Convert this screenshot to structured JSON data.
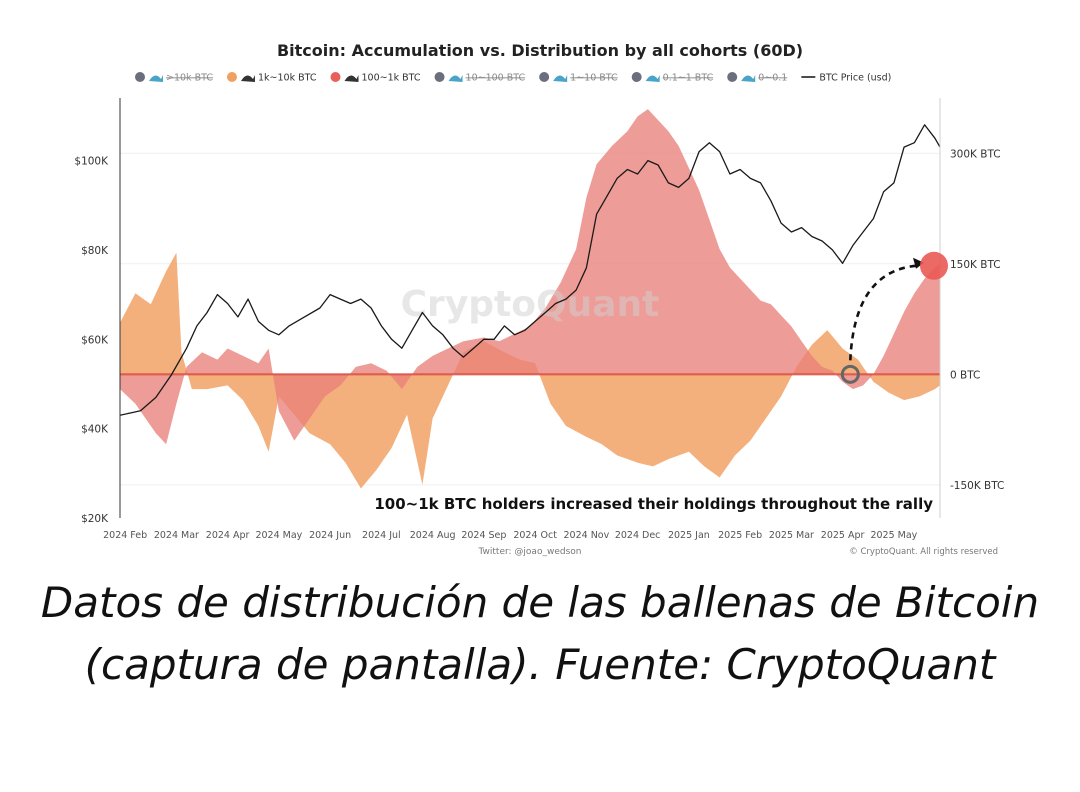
{
  "chart_data": {
    "type": "area",
    "title": "Bitcoin: Accumulation vs. Distribution by all cohorts (60D)",
    "legend_placement": "top",
    "legend": [
      {
        "label": ">10k BTC",
        "color": "#6b6f7d",
        "hidden": true,
        "icon": "humpback-icon"
      },
      {
        "label": "1k~10k BTC",
        "color": "#f0a060",
        "hidden": false,
        "icon": "whale-icon"
      },
      {
        "label": "100~1k BTC",
        "color": "#e8605a",
        "hidden": false,
        "icon": "shark-icon"
      },
      {
        "label": "10~100 BTC",
        "color": "#6b6f7d",
        "hidden": true,
        "icon": "dolphin-icon"
      },
      {
        "label": "1~10 BTC",
        "color": "#6b6f7d",
        "hidden": true,
        "icon": "crab-icon"
      },
      {
        "label": "0.1~1 BTC",
        "color": "#6b6f7d",
        "hidden": true,
        "icon": "octopus-icon"
      },
      {
        "label": "0~0.1",
        "color": "#6b6f7d",
        "hidden": true,
        "icon": "shrimp-icon"
      },
      {
        "label": "BTC Price (usd)",
        "color": "#111111",
        "hidden": false,
        "icon": "line-icon"
      }
    ],
    "x_ticks": [
      "2024 Feb",
      "2024 Mar",
      "2024 Apr",
      "2024 May",
      "2024 Jun",
      "2024 Jul",
      "2024 Aug",
      "2024 Sep",
      "2024 Oct",
      "2024 Nov",
      "2024 Dec",
      "2025 Jan",
      "2025 Feb",
      "2025 Mar",
      "2025 Apr",
      "2025 May"
    ],
    "x_tick_months": [
      0,
      1,
      2,
      3,
      4,
      5,
      6,
      7,
      8,
      9,
      10,
      11,
      12,
      13,
      14,
      15
    ],
    "x_range": [
      -0.1,
      15.9
    ],
    "y_left": {
      "ticks": [
        "$20K",
        "$40K",
        "$60K",
        "$80K",
        "$100K"
      ],
      "values": [
        20000,
        40000,
        60000,
        80000,
        100000
      ],
      "range": [
        20000,
        114000
      ]
    },
    "y_right": {
      "ticks": [
        "300K BTC",
        "150K BTC",
        "0 BTC",
        "-150K BTC"
      ],
      "values": [
        300000,
        150000,
        0,
        -150000
      ],
      "range": [
        -195000,
        375000
      ]
    },
    "series": [
      {
        "name": "1k~10k BTC",
        "color": "#f3a56a",
        "axis": "right",
        "x": [
          -0.1,
          0.2,
          0.5,
          0.8,
          1.0,
          1.1,
          1.3,
          1.6,
          2.0,
          2.3,
          2.6,
          2.8,
          3.0,
          3.3,
          3.6,
          4.0,
          4.3,
          4.6,
          4.9,
          5.2,
          5.5,
          5.8,
          6.0,
          6.3,
          6.6,
          7.0,
          7.4,
          7.7,
          8.0,
          8.3,
          8.6,
          9.0,
          9.3,
          9.6,
          10.0,
          10.3,
          10.6,
          11.0,
          11.3,
          11.6,
          11.9,
          12.2,
          12.5,
          12.8,
          13.1,
          13.4,
          13.7,
          14.0,
          14.3,
          14.6,
          14.9,
          15.2,
          15.5,
          15.8,
          15.9
        ],
        "values": [
          70000,
          110000,
          95000,
          140000,
          165000,
          30000,
          -20000,
          -20000,
          -15000,
          -35000,
          -70000,
          -105000,
          -30000,
          -55000,
          -80000,
          -95000,
          -120000,
          -155000,
          -130000,
          -100000,
          -55000,
          -150000,
          -60000,
          -15000,
          30000,
          45000,
          30000,
          20000,
          15000,
          -40000,
          -70000,
          -85000,
          -95000,
          -110000,
          -120000,
          -125000,
          -115000,
          -105000,
          -125000,
          -140000,
          -110000,
          -90000,
          -60000,
          -30000,
          10000,
          40000,
          60000,
          35000,
          20000,
          -10000,
          -25000,
          -35000,
          -30000,
          -20000,
          -15000
        ]
      },
      {
        "name": "100~1k BTC",
        "color": "#e9807a",
        "axis": "right",
        "x": [
          -0.1,
          0.2,
          0.4,
          0.6,
          0.8,
          1.0,
          1.2,
          1.5,
          1.8,
          2.0,
          2.3,
          2.6,
          2.8,
          3.0,
          3.3,
          3.6,
          3.9,
          4.2,
          4.5,
          4.8,
          5.1,
          5.4,
          5.7,
          6.0,
          6.3,
          6.6,
          7.0,
          7.3,
          7.6,
          7.9,
          8.2,
          8.5,
          8.8,
          9.0,
          9.2,
          9.5,
          9.8,
          10.0,
          10.2,
          10.4,
          10.6,
          10.8,
          11.0,
          11.2,
          11.4,
          11.6,
          11.8,
          12.0,
          12.2,
          12.4,
          12.6,
          12.8,
          13.0,
          13.2,
          13.4,
          13.6,
          13.8,
          14.0,
          14.2,
          14.4,
          14.6,
          14.8,
          15.0,
          15.2,
          15.4,
          15.6,
          15.8,
          15.9
        ],
        "values": [
          -20000,
          -40000,
          -60000,
          -80000,
          -95000,
          -40000,
          10000,
          30000,
          20000,
          35000,
          25000,
          15000,
          35000,
          -50000,
          -90000,
          -60000,
          -30000,
          -15000,
          10000,
          15000,
          5000,
          -20000,
          10000,
          25000,
          35000,
          45000,
          50000,
          45000,
          55000,
          65000,
          90000,
          125000,
          170000,
          240000,
          285000,
          310000,
          330000,
          350000,
          360000,
          345000,
          330000,
          310000,
          280000,
          250000,
          210000,
          170000,
          145000,
          130000,
          115000,
          100000,
          95000,
          80000,
          65000,
          45000,
          25000,
          10000,
          5000,
          -10000,
          -20000,
          -15000,
          0,
          25000,
          55000,
          85000,
          110000,
          130000,
          145000,
          150000
        ]
      }
    ],
    "btc_price": {
      "name": "BTC Price (usd)",
      "axis": "left",
      "color": "#1a1a1a",
      "x": [
        -0.1,
        0.1,
        0.3,
        0.6,
        0.9,
        1.2,
        1.4,
        1.6,
        1.8,
        2.0,
        2.2,
        2.4,
        2.6,
        2.8,
        3.0,
        3.2,
        3.5,
        3.8,
        4.0,
        4.2,
        4.4,
        4.6,
        4.8,
        5.0,
        5.2,
        5.4,
        5.6,
        5.8,
        6.0,
        6.2,
        6.4,
        6.6,
        6.8,
        7.0,
        7.2,
        7.4,
        7.6,
        7.8,
        8.0,
        8.2,
        8.4,
        8.6,
        8.8,
        9.0,
        9.2,
        9.4,
        9.6,
        9.8,
        10.0,
        10.2,
        10.4,
        10.6,
        10.8,
        11.0,
        11.2,
        11.4,
        11.6,
        11.8,
        12.0,
        12.2,
        12.4,
        12.6,
        12.8,
        13.0,
        13.2,
        13.4,
        13.6,
        13.8,
        14.0,
        14.2,
        14.4,
        14.6,
        14.8,
        15.0,
        15.2,
        15.4,
        15.6,
        15.8,
        15.9
      ],
      "values": [
        43000,
        43500,
        44000,
        47000,
        52000,
        58000,
        63000,
        66000,
        70000,
        68000,
        65000,
        69000,
        64000,
        62000,
        61000,
        63000,
        65000,
        67000,
        70000,
        69000,
        68000,
        69000,
        67000,
        63000,
        60000,
        58000,
        62000,
        66000,
        63000,
        61000,
        58000,
        56000,
        58000,
        60000,
        60000,
        63000,
        61000,
        62000,
        64000,
        66000,
        68000,
        69000,
        71000,
        76000,
        88000,
        92000,
        96000,
        98000,
        97000,
        100000,
        99000,
        95000,
        94000,
        96000,
        102000,
        104000,
        102000,
        97000,
        98000,
        96000,
        95000,
        91000,
        86000,
        84000,
        85000,
        83000,
        82000,
        80000,
        77000,
        81000,
        84000,
        87000,
        93000,
        95000,
        103000,
        104000,
        108000,
        105000,
        103000
      ]
    },
    "annotation": "100~1k BTC holders increased their holdings throughout the rally",
    "watermark": "CryptoQuant",
    "credit_left": "Twitter: @joao_wedson",
    "credit_right": "© CryptoQuant. All rights reserved",
    "grid": true
  },
  "caption": "Datos de distribución de las ballenas de Bitcoin (captura de pantalla). Fuente: CryptoQuant"
}
